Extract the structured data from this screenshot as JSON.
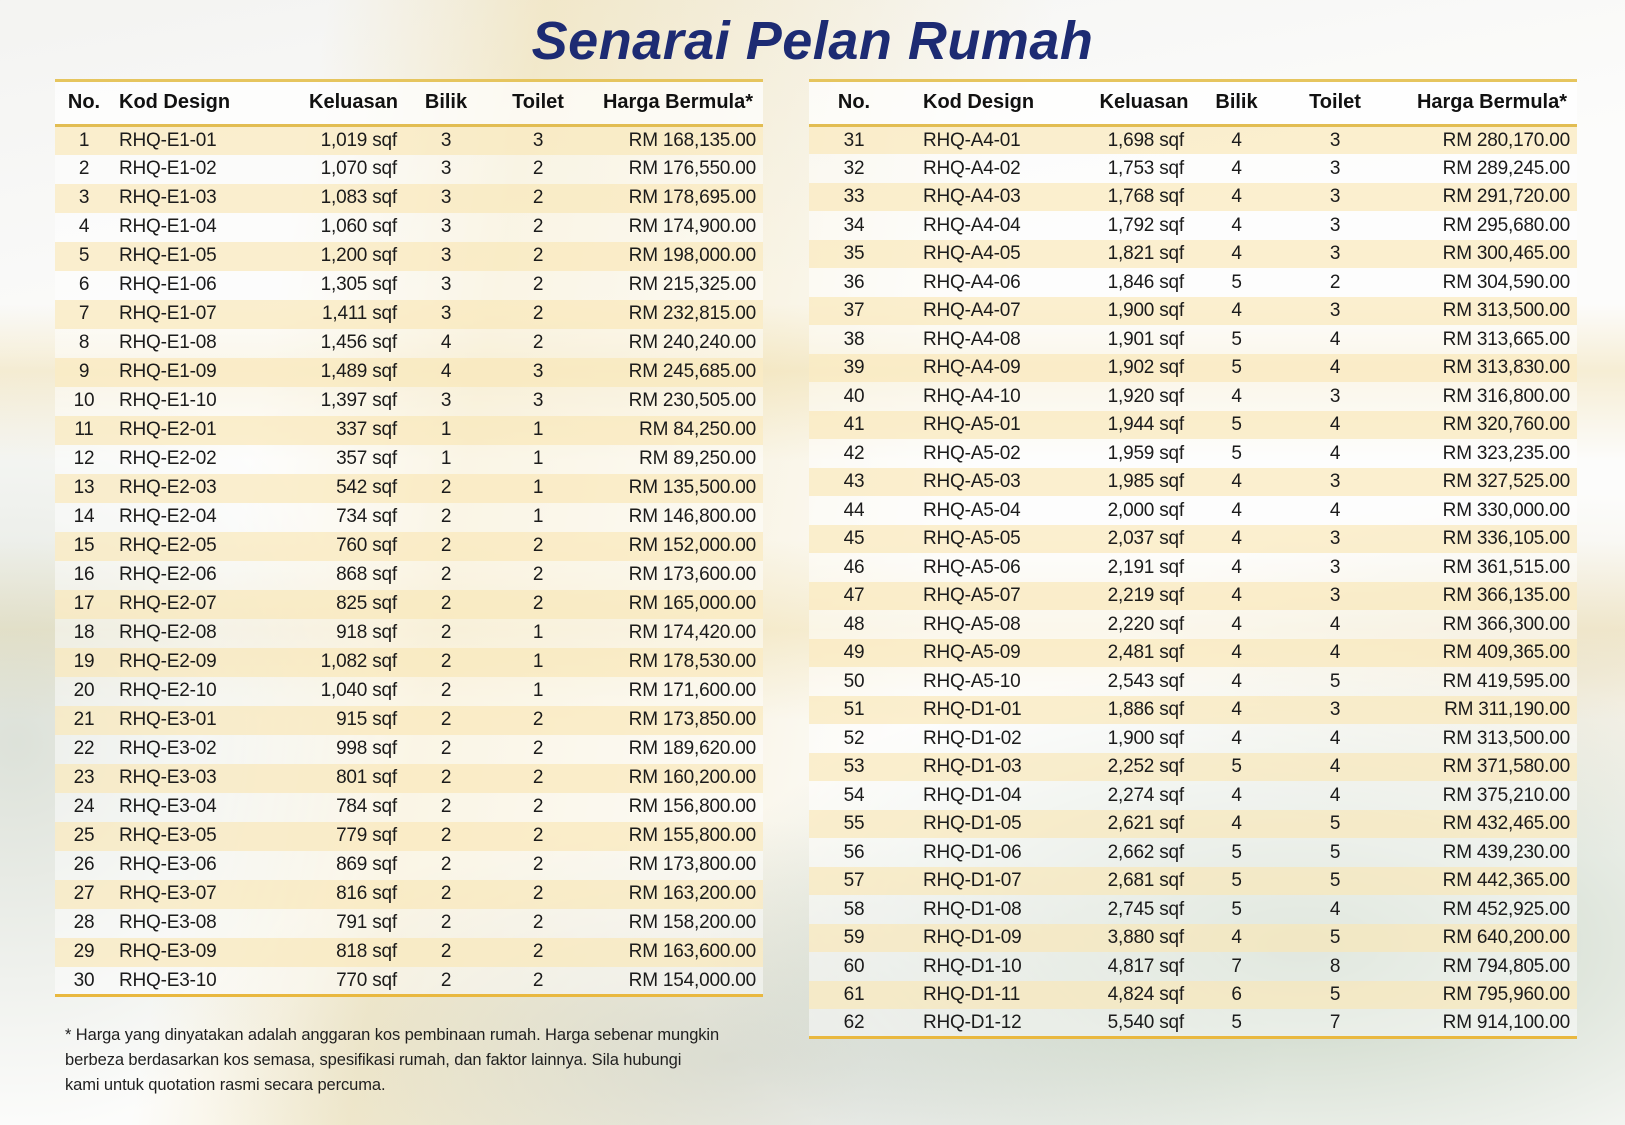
{
  "title": "Senarai Pelan Rumah",
  "columns": [
    "No.",
    "Kod Design",
    "Keluasan",
    "Bilik",
    "Toilet",
    "Harga Bermula*"
  ],
  "left_table": {
    "rows": [
      [
        "1",
        "RHQ-E1-01",
        "1,019 sqf",
        "3",
        "3",
        "RM 168,135.00"
      ],
      [
        "2",
        "RHQ-E1-02",
        "1,070 sqf",
        "3",
        "2",
        "RM 176,550.00"
      ],
      [
        "3",
        "RHQ-E1-03",
        "1,083 sqf",
        "3",
        "2",
        "RM 178,695.00"
      ],
      [
        "4",
        "RHQ-E1-04",
        "1,060 sqf",
        "3",
        "2",
        "RM 174,900.00"
      ],
      [
        "5",
        "RHQ-E1-05",
        "1,200 sqf",
        "3",
        "2",
        "RM 198,000.00"
      ],
      [
        "6",
        "RHQ-E1-06",
        "1,305 sqf",
        "3",
        "2",
        "RM 215,325.00"
      ],
      [
        "7",
        "RHQ-E1-07",
        "1,411 sqf",
        "3",
        "2",
        "RM 232,815.00"
      ],
      [
        "8",
        "RHQ-E1-08",
        "1,456 sqf",
        "4",
        "2",
        "RM 240,240.00"
      ],
      [
        "9",
        "RHQ-E1-09",
        "1,489 sqf",
        "4",
        "3",
        "RM 245,685.00"
      ],
      [
        "10",
        "RHQ-E1-10",
        "1,397 sqf",
        "3",
        "3",
        "RM 230,505.00"
      ],
      [
        "11",
        "RHQ-E2-01",
        "337 sqf",
        "1",
        "1",
        "RM 84,250.00"
      ],
      [
        "12",
        "RHQ-E2-02",
        "357 sqf",
        "1",
        "1",
        "RM 89,250.00"
      ],
      [
        "13",
        "RHQ-E2-03",
        "542 sqf",
        "2",
        "1",
        "RM 135,500.00"
      ],
      [
        "14",
        "RHQ-E2-04",
        "734 sqf",
        "2",
        "1",
        "RM 146,800.00"
      ],
      [
        "15",
        "RHQ-E2-05",
        "760 sqf",
        "2",
        "2",
        "RM 152,000.00"
      ],
      [
        "16",
        "RHQ-E2-06",
        "868 sqf",
        "2",
        "2",
        "RM 173,600.00"
      ],
      [
        "17",
        "RHQ-E2-07",
        "825 sqf",
        "2",
        "2",
        "RM 165,000.00"
      ],
      [
        "18",
        "RHQ-E2-08",
        "918 sqf",
        "2",
        "1",
        "RM 174,420.00"
      ],
      [
        "19",
        "RHQ-E2-09",
        "1,082 sqf",
        "2",
        "1",
        "RM 178,530.00"
      ],
      [
        "20",
        "RHQ-E2-10",
        "1,040 sqf",
        "2",
        "1",
        "RM 171,600.00"
      ],
      [
        "21",
        "RHQ-E3-01",
        "915 sqf",
        "2",
        "2",
        "RM 173,850.00"
      ],
      [
        "22",
        "RHQ-E3-02",
        "998 sqf",
        "2",
        "2",
        "RM 189,620.00"
      ],
      [
        "23",
        "RHQ-E3-03",
        "801 sqf",
        "2",
        "2",
        "RM 160,200.00"
      ],
      [
        "24",
        "RHQ-E3-04",
        "784 sqf",
        "2",
        "2",
        "RM 156,800.00"
      ],
      [
        "25",
        "RHQ-E3-05",
        "779 sqf",
        "2",
        "2",
        "RM 155,800.00"
      ],
      [
        "26",
        "RHQ-E3-06",
        "869 sqf",
        "2",
        "2",
        "RM 173,800.00"
      ],
      [
        "27",
        "RHQ-E3-07",
        "816 sqf",
        "2",
        "2",
        "RM 163,200.00"
      ],
      [
        "28",
        "RHQ-E3-08",
        "791 sqf",
        "2",
        "2",
        "RM 158,200.00"
      ],
      [
        "29",
        "RHQ-E3-09",
        "818 sqf",
        "2",
        "2",
        "RM 163,600.00"
      ],
      [
        "30",
        "RHQ-E3-10",
        "770 sqf",
        "2",
        "2",
        "RM 154,000.00"
      ]
    ]
  },
  "right_table": {
    "rows": [
      [
        "31",
        "RHQ-A4-01",
        "1,698 sqf",
        "4",
        "3",
        "RM 280,170.00"
      ],
      [
        "32",
        "RHQ-A4-02",
        "1,753 sqf",
        "4",
        "3",
        "RM 289,245.00"
      ],
      [
        "33",
        "RHQ-A4-03",
        "1,768 sqf",
        "4",
        "3",
        "RM 291,720.00"
      ],
      [
        "34",
        "RHQ-A4-04",
        "1,792 sqf",
        "4",
        "3",
        "RM 295,680.00"
      ],
      [
        "35",
        "RHQ-A4-05",
        "1,821 sqf",
        "4",
        "3",
        "RM 300,465.00"
      ],
      [
        "36",
        "RHQ-A4-06",
        "1,846 sqf",
        "5",
        "2",
        "RM 304,590.00"
      ],
      [
        "37",
        "RHQ-A4-07",
        "1,900 sqf",
        "4",
        "3",
        "RM 313,500.00"
      ],
      [
        "38",
        "RHQ-A4-08",
        "1,901 sqf",
        "5",
        "4",
        "RM 313,665.00"
      ],
      [
        "39",
        "RHQ-A4-09",
        "1,902 sqf",
        "5",
        "4",
        "RM 313,830.00"
      ],
      [
        "40",
        "RHQ-A4-10",
        "1,920 sqf",
        "4",
        "3",
        "RM 316,800.00"
      ],
      [
        "41",
        "RHQ-A5-01",
        "1,944 sqf",
        "5",
        "4",
        "RM 320,760.00"
      ],
      [
        "42",
        "RHQ-A5-02",
        "1,959 sqf",
        "5",
        "4",
        "RM 323,235.00"
      ],
      [
        "43",
        "RHQ-A5-03",
        "1,985 sqf",
        "4",
        "3",
        "RM 327,525.00"
      ],
      [
        "44",
        "RHQ-A5-04",
        "2,000 sqf",
        "4",
        "4",
        "RM 330,000.00"
      ],
      [
        "45",
        "RHQ-A5-05",
        "2,037 sqf",
        "4",
        "3",
        "RM 336,105.00"
      ],
      [
        "46",
        "RHQ-A5-06",
        "2,191 sqf",
        "4",
        "3",
        "RM 361,515.00"
      ],
      [
        "47",
        "RHQ-A5-07",
        "2,219 sqf",
        "4",
        "3",
        "RM 366,135.00"
      ],
      [
        "48",
        "RHQ-A5-08",
        "2,220 sqf",
        "4",
        "4",
        "RM 366,300.00"
      ],
      [
        "49",
        "RHQ-A5-09",
        "2,481 sqf",
        "4",
        "4",
        "RM 409,365.00"
      ],
      [
        "50",
        "RHQ-A5-10",
        "2,543 sqf",
        "4",
        "5",
        "RM 419,595.00"
      ],
      [
        "51",
        "RHQ-D1-01",
        "1,886 sqf",
        "4",
        "3",
        "RM 311,190.00"
      ],
      [
        "52",
        "RHQ-D1-02",
        "1,900 sqf",
        "4",
        "4",
        "RM 313,500.00"
      ],
      [
        "53",
        "RHQ-D1-03",
        "2,252 sqf",
        "5",
        "4",
        "RM 371,580.00"
      ],
      [
        "54",
        "RHQ-D1-04",
        "2,274 sqf",
        "4",
        "4",
        "RM 375,210.00"
      ],
      [
        "55",
        "RHQ-D1-05",
        "2,621 sqf",
        "4",
        "5",
        "RM 432,465.00"
      ],
      [
        "56",
        "RHQ-D1-06",
        "2,662 sqf",
        "5",
        "5",
        "RM 439,230.00"
      ],
      [
        "57",
        "RHQ-D1-07",
        "2,681 sqf",
        "5",
        "5",
        "RM 442,365.00"
      ],
      [
        "58",
        "RHQ-D1-08",
        "2,745 sqf",
        "5",
        "4",
        "RM 452,925.00"
      ],
      [
        "59",
        "RHQ-D1-09",
        "3,880 sqf",
        "4",
        "5",
        "RM 640,200.00"
      ],
      [
        "60",
        "RHQ-D1-10",
        "4,817 sqf",
        "7",
        "8",
        "RM 794,805.00"
      ],
      [
        "61",
        "RHQ-D1-11",
        "4,824 sqf",
        "6",
        "5",
        "RM 795,960.00"
      ],
      [
        "62",
        "RHQ-D1-12",
        "5,540 sqf",
        "5",
        "7",
        "RM 914,100.00"
      ]
    ]
  },
  "footnote": "* Harga yang dinyatakan adalah anggaran kos pembinaan rumah. Harga sebenar mungkin berbeza berdasarkan kos semasa, spesifikasi rumah, dan faktor lainnya. Sila hubungi kami untuk quotation rasmi secara percuma.",
  "colors": {
    "title_navy": "#1D2B73",
    "accent_gold": "#E2BD52",
    "stripe_cream": "#FAEBC4",
    "bottom_rule_gold": "#E9B83F"
  }
}
